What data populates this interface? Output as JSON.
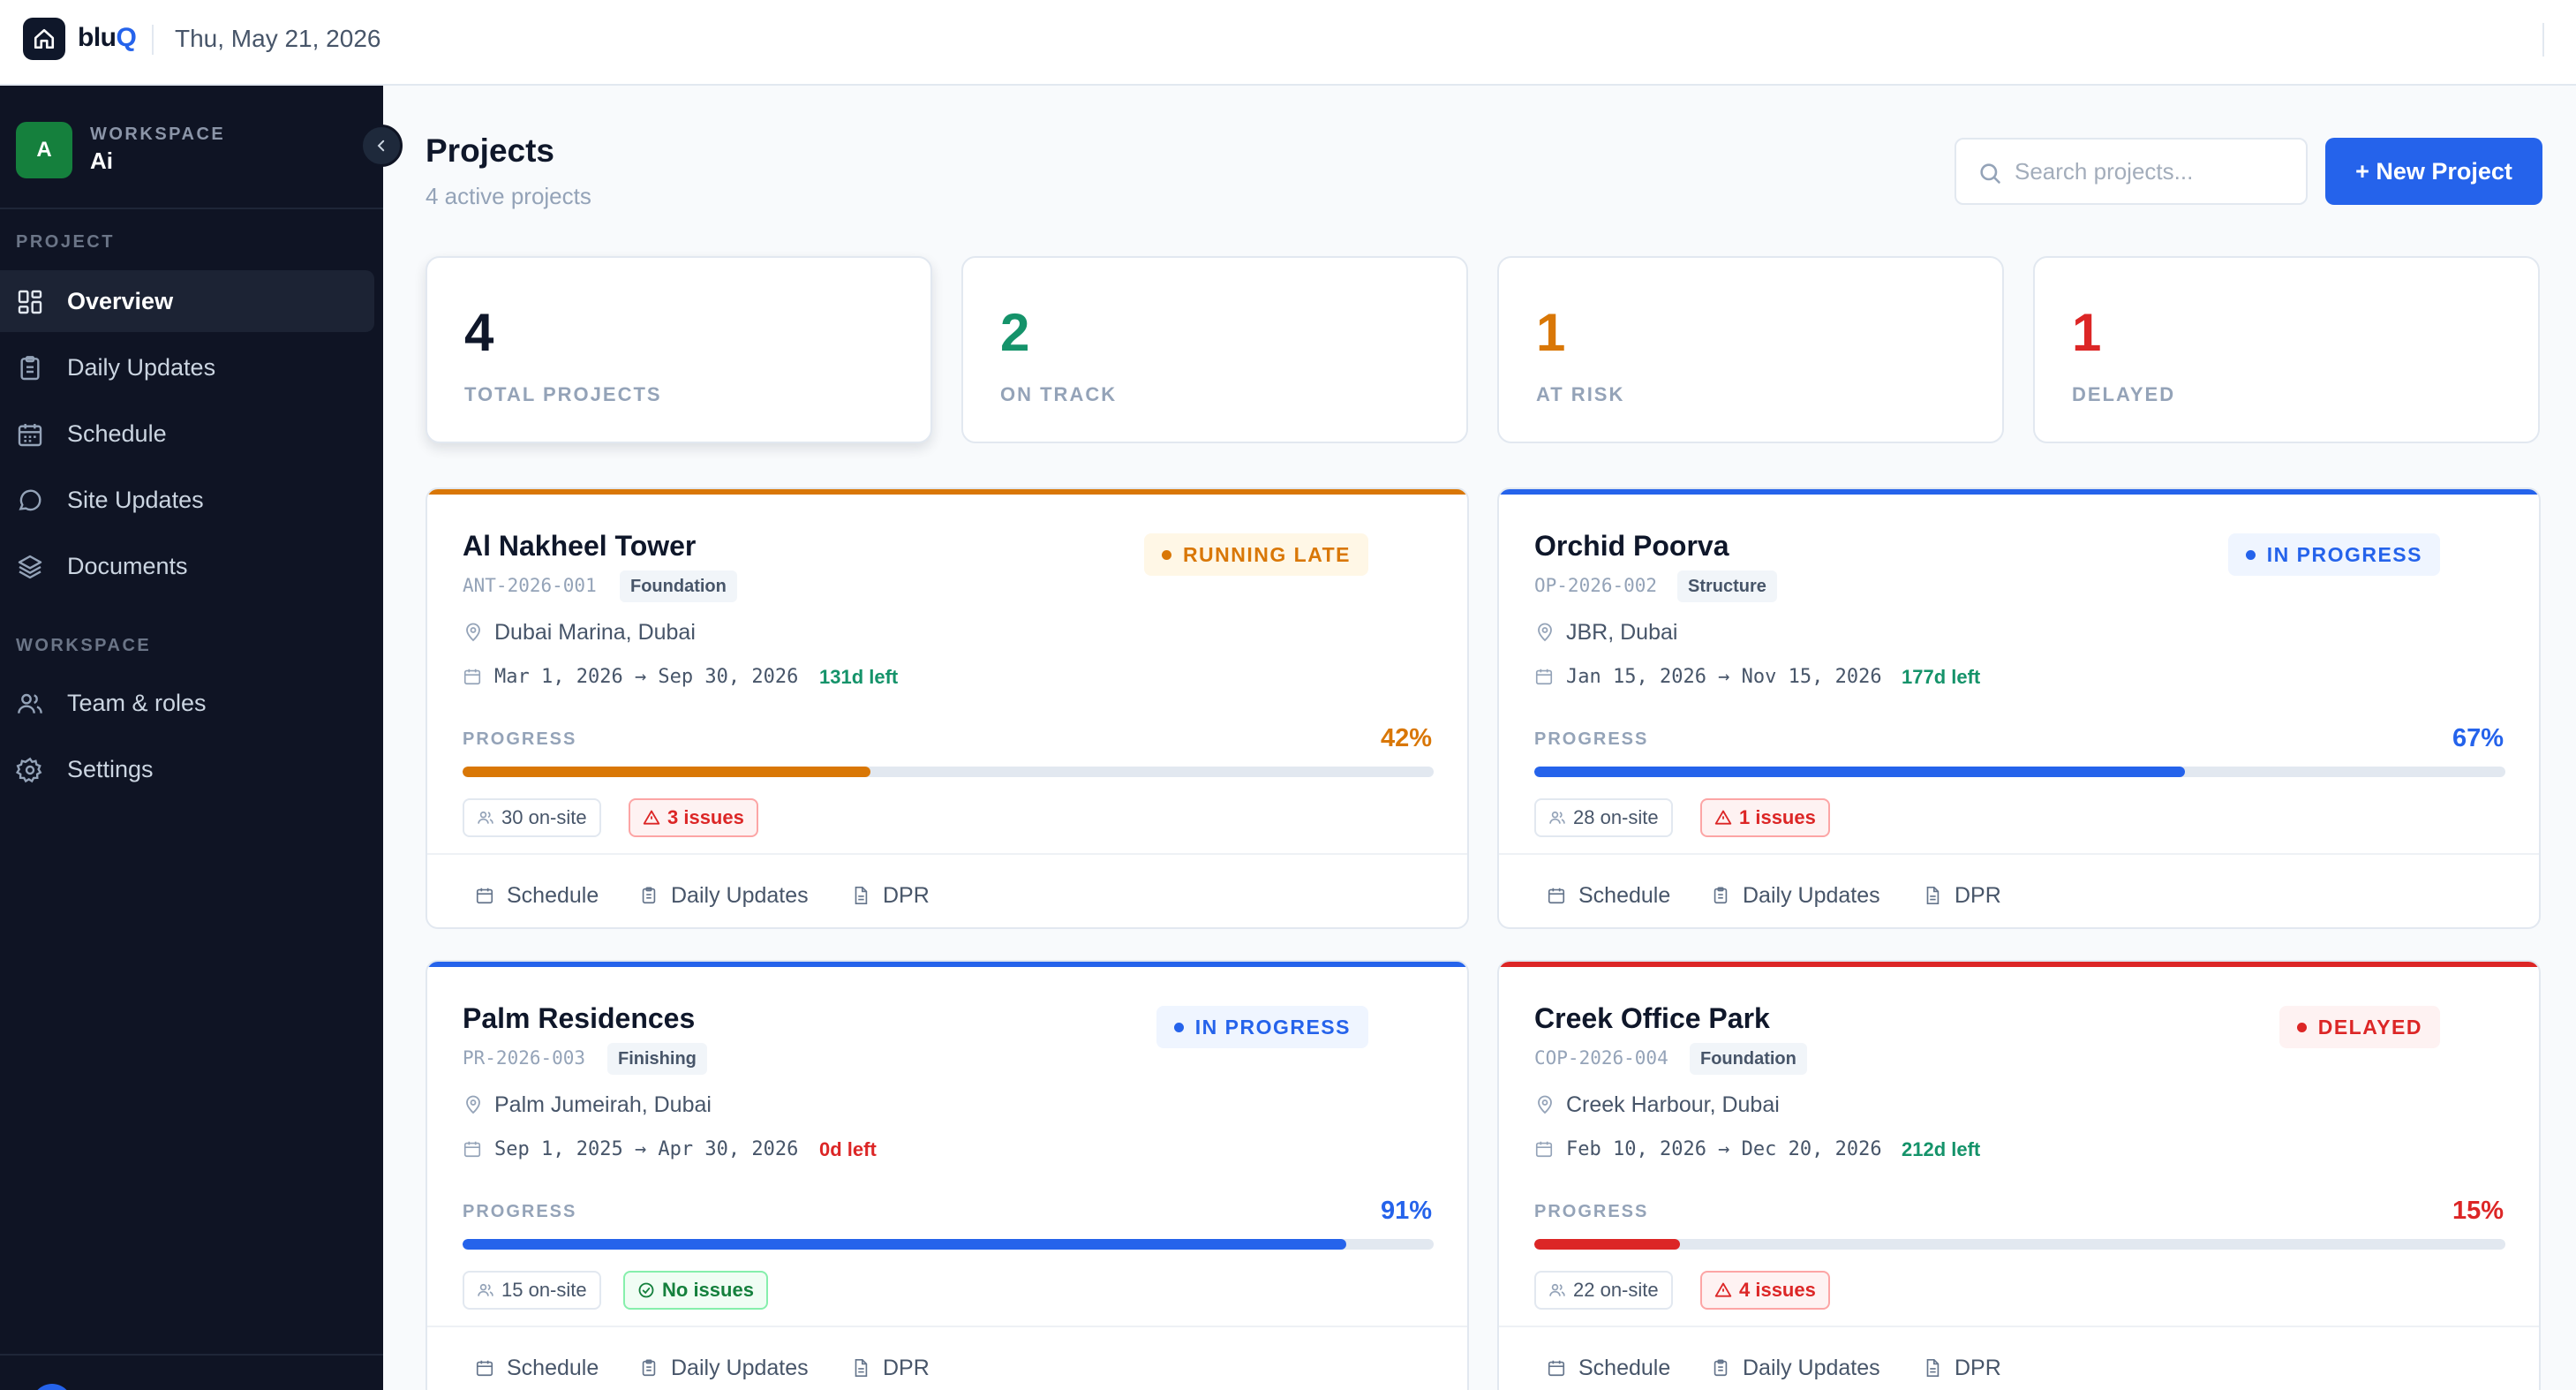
{
  "topbar": {
    "brand_prefix": "blu",
    "brand_suffix": "Q",
    "date": "Thu, May 21, 2026"
  },
  "sidebar": {
    "workspace_initial": "A",
    "workspace_caption": "WORKSPACE",
    "workspace_name": "Ai",
    "sections": [
      {
        "title": "PROJECT",
        "items": [
          {
            "label": "Overview",
            "icon": "grid-icon",
            "active": true
          },
          {
            "label": "Daily Updates",
            "icon": "clipboard-icon"
          },
          {
            "label": "Schedule",
            "icon": "calendar-icon"
          },
          {
            "label": "Site Updates",
            "icon": "chat-bubble-icon"
          },
          {
            "label": "Documents",
            "icon": "layers-icon"
          }
        ]
      },
      {
        "title": "WORKSPACE",
        "items": [
          {
            "label": "Team & roles",
            "icon": "users-icon"
          },
          {
            "label": "Settings",
            "icon": "gear-icon"
          }
        ]
      }
    ]
  },
  "header": {
    "title": "Projects",
    "subtitle": "4 active projects",
    "search_placeholder": "Search projects...",
    "new_button": "+ New Project"
  },
  "stats": [
    {
      "value": "4",
      "label": "TOTAL PROJECTS",
      "color": "#0f172a"
    },
    {
      "value": "2",
      "label": "ON TRACK",
      "color": "#15936a"
    },
    {
      "value": "1",
      "label": "AT RISK",
      "color": "#d97706"
    },
    {
      "value": "1",
      "label": "DELAYED",
      "color": "#dc2626"
    }
  ],
  "projects": [
    {
      "name": "Al Nakheel Tower",
      "code": "ANT-2026-001",
      "phase": "Foundation",
      "status": "RUNNING LATE",
      "location": "Dubai Marina, Dubai",
      "dates": "Mar 1, 2026 → Sep 30, 2026",
      "time_left": "131d left",
      "progress_label": "PROGRESS",
      "progress": "42%",
      "progress_value": 42,
      "onsite": "30 on-site",
      "issues": "3 issues",
      "issues_ok": false,
      "actions": [
        "Schedule",
        "Daily Updates",
        "DPR"
      ],
      "color": "#d97706"
    },
    {
      "name": "Orchid Poorva",
      "code": "OP-2026-002",
      "phase": "Structure",
      "status": "IN PROGRESS",
      "location": "JBR, Dubai",
      "dates": "Jan 15, 2026 → Nov 15, 2026",
      "time_left": "177d left",
      "progress_label": "PROGRESS",
      "progress": "67%",
      "progress_value": 67,
      "onsite": "28 on-site",
      "issues": "1 issues",
      "issues_ok": false,
      "actions": [
        "Schedule",
        "Daily Updates",
        "DPR"
      ],
      "color": "#2563eb"
    },
    {
      "name": "Palm Residences",
      "code": "PR-2026-003",
      "phase": "Finishing",
      "status": "IN PROGRESS",
      "location": "Palm Jumeirah, Dubai",
      "dates": "Sep 1, 2025 → Apr 30, 2026",
      "time_left": "0d left",
      "progress_label": "PROGRESS",
      "progress": "91%",
      "progress_value": 91,
      "onsite": "15 on-site",
      "issues": "No issues",
      "issues_ok": true,
      "actions": [
        "Schedule",
        "Daily Updates",
        "DPR"
      ],
      "color": "#2563eb"
    },
    {
      "name": "Creek Office Park",
      "code": "COP-2026-004",
      "phase": "Foundation",
      "status": "DELAYED",
      "location": "Creek Harbour, Dubai",
      "dates": "Feb 10, 2026 → Dec 20, 2026",
      "time_left": "212d left",
      "progress_label": "PROGRESS",
      "progress": "15%",
      "progress_value": 15,
      "onsite": "22 on-site",
      "issues": "4 issues",
      "issues_ok": false,
      "actions": [
        "Schedule",
        "Daily Updates",
        "DPR"
      ],
      "color": "#dc2626"
    }
  ]
}
